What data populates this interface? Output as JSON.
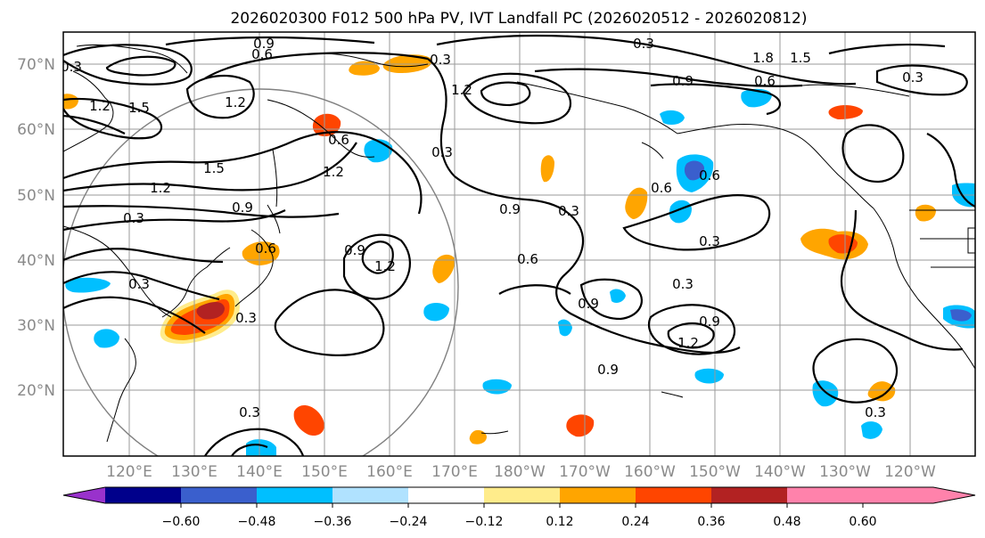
{
  "title": "2026020300 F012 500 hPa PV, IVT Landfall PC (2026020512 - 2026020812)",
  "lat_labels": [
    "70°N",
    "60°N",
    "50°N",
    "40°N",
    "30°N",
    "20°N"
  ],
  "lon_labels": [
    "120°E",
    "130°E",
    "140°E",
    "150°E",
    "160°E",
    "170°E",
    "180°W",
    "170°W",
    "160°W",
    "150°W",
    "140°W",
    "130°W",
    "120°W"
  ],
  "contour_labels": [
    "0.3",
    "1.2",
    "1.5",
    "1.2",
    "1.5",
    "1.2",
    "0.9",
    "0.3",
    "0.6",
    "0.3",
    "0.3",
    "1.2",
    "0.9",
    "1.2",
    "0.6",
    "0.9",
    "0.3",
    "0.6",
    "0.6",
    "0.3",
    "0.9",
    "1.2",
    "0.9",
    "0.3",
    "0.6",
    "1.8",
    "1.5",
    "0.9",
    "0.3",
    "0.3",
    "0.9",
    "0.3",
    "0.3",
    "0.3",
    "0.6",
    "0.9",
    "1.2",
    "0.3",
    "0.6"
  ],
  "colorbar": {
    "colors": [
      "#9932CC",
      "#00008B",
      "#3A5FCD",
      "#00BFFF",
      "#B0E2FF",
      "#FFFFFF",
      "#FFEC8B",
      "#FFA500",
      "#FF4500",
      "#B22222",
      "#FF82AB"
    ],
    "tick_labels": [
      "−0.60",
      "−0.48",
      "−0.36",
      "−0.24",
      "−0.12",
      "0.12",
      "0.24",
      "0.36",
      "0.48",
      "0.60"
    ]
  }
}
